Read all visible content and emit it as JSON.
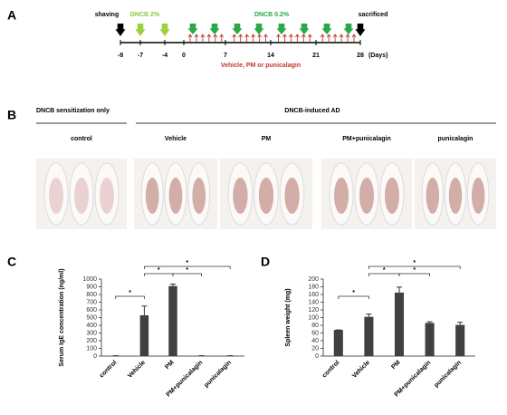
{
  "panel_labels": [
    "A",
    "B",
    "C",
    "D"
  ],
  "timeline": {
    "events": [
      "shaving",
      "DNCB 2%",
      "DNCB 0.2%",
      "sacrificed"
    ],
    "days": [
      "-8",
      "-7",
      "-4",
      "0",
      "7",
      "14",
      "21",
      "28"
    ],
    "unit": "(Days)",
    "treatment": "Vehicle, PM or punicalagin"
  },
  "photos": {
    "headers": [
      "DNCB sensitization only",
      "DNCB-induced AD"
    ],
    "groups": [
      "control",
      "Vehicle",
      "PM",
      "PM+punicalagin",
      "punicalagin"
    ]
  },
  "chart_data": [
    {
      "type": "bar",
      "ylabel": "Serum IgE concentration (ng/ml)",
      "categories": [
        "control",
        "Vehicle",
        "PM",
        "PM+punicalagin",
        "punicalagin"
      ],
      "values": [
        5,
        530,
        910,
        5,
        5
      ],
      "errors": [
        0,
        120,
        25,
        0,
        0
      ],
      "color": "#404040",
      "ylim": [
        0,
        1000
      ],
      "yticks": [
        0,
        100,
        200,
        300,
        400,
        500,
        600,
        700,
        800,
        900,
        1000
      ],
      "comparisons": [
        {
          "groups": [
            "control",
            "Vehicle"
          ],
          "label": "*"
        },
        {
          "groups": [
            "Vehicle",
            "PM"
          ],
          "label": "*"
        },
        {
          "groups": [
            "PM",
            "PM+punicalagin"
          ],
          "label": "*"
        },
        {
          "groups": [
            "Vehicle",
            "punicalagin"
          ],
          "label": "*"
        }
      ]
    },
    {
      "type": "bar",
      "ylabel": "Spleen weight (mg)",
      "categories": [
        "control",
        "Vehicle",
        "PM",
        "PM+punicalagin",
        "punicalagin"
      ],
      "values": [
        68,
        102,
        165,
        86,
        81
      ],
      "errors": [
        0,
        7,
        14,
        3,
        7
      ],
      "color": "#404040",
      "ylim": [
        0,
        200
      ],
      "yticks": [
        0,
        20,
        40,
        60,
        80,
        100,
        120,
        140,
        160,
        180,
        200
      ],
      "comparisons": [
        {
          "groups": [
            "control",
            "Vehicle"
          ],
          "label": "*"
        },
        {
          "groups": [
            "Vehicle",
            "PM"
          ],
          "label": "*"
        },
        {
          "groups": [
            "PM",
            "PM+punicalagin"
          ],
          "label": "*"
        },
        {
          "groups": [
            "Vehicle",
            "punicalagin"
          ],
          "label": "*"
        }
      ]
    }
  ]
}
